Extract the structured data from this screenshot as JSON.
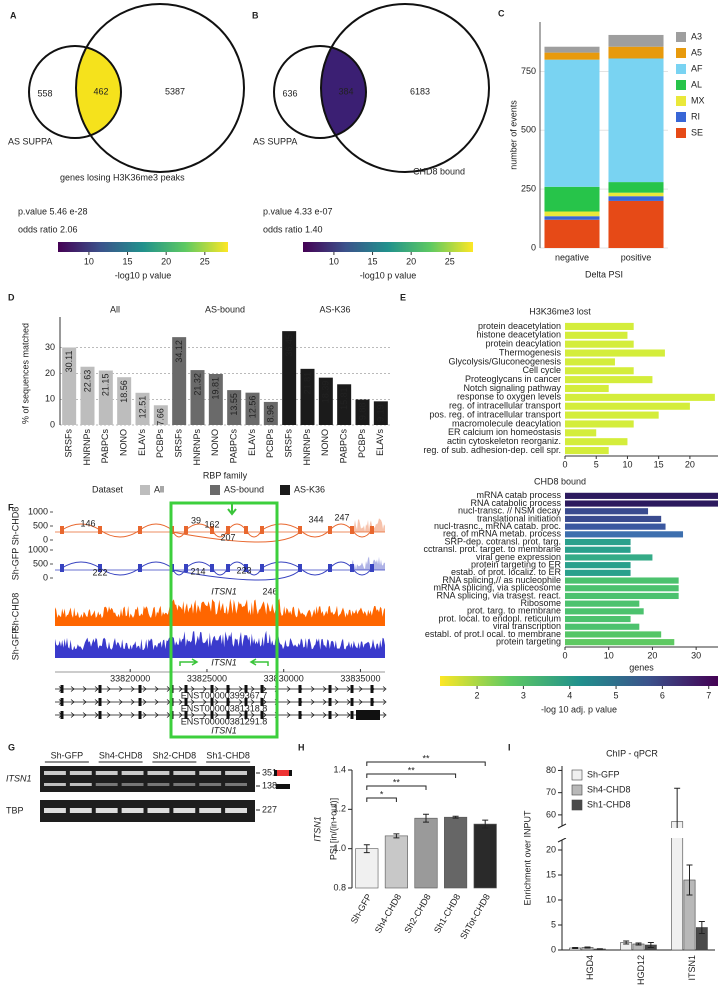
{
  "panel_labels": [
    "A",
    "B",
    "C",
    "D",
    "E",
    "F",
    "G",
    "H",
    "I"
  ],
  "venns": [
    {
      "left_count": 558,
      "overlap_count": 462,
      "right_count": 5387,
      "left_name": "AS SUPPA",
      "right_name": "genes losing H3K36me3 peaks",
      "pvalue": "p.value 5.46 e-28",
      "odds": "odds ratio 2.06",
      "overlap_color": "#f5e21c",
      "overlap_text_color": "#000000",
      "colorbar": {
        "label": "-log10 p value",
        "lim": [
          6,
          28
        ],
        "ticks": [
          10,
          15,
          20,
          25
        ]
      }
    },
    {
      "left_count": 636,
      "overlap_count": 384,
      "right_count": 6183,
      "left_name": "AS SUPPA",
      "right_name": "CHD8 bound",
      "pvalue": "p.value 4.33 e-07",
      "odds": "odds ratio 1.40",
      "overlap_color": "#3b1f73",
      "overlap_text_color": "#ffffff",
      "colorbar": {
        "label": "-log10 p value",
        "lim": [
          6,
          28
        ],
        "ticks": [
          10,
          15,
          20,
          25
        ]
      }
    }
  ],
  "chart_data": [
    {
      "type": "stacked_bar",
      "categories": [
        "negative",
        "positive"
      ],
      "series": [
        {
          "name": "A3",
          "color": "#9e9e9e",
          "values": [
            25,
            50
          ]
        },
        {
          "name": "A5",
          "color": "#e89a0c",
          "values": [
            30,
            50
          ]
        },
        {
          "name": "AF",
          "color": "#79d3f2",
          "values": [
            540,
            525
          ]
        },
        {
          "name": "AL",
          "color": "#27c44a",
          "values": [
            105,
            45
          ]
        },
        {
          "name": "MX",
          "color": "#eae83a",
          "values": [
            20,
            15
          ]
        },
        {
          "name": "RI",
          "color": "#3866d6",
          "values": [
            15,
            20
          ]
        },
        {
          "name": "SE",
          "color": "#e64a17",
          "values": [
            120,
            200
          ]
        }
      ],
      "ylim": [
        0,
        960
      ],
      "yticks": [
        0,
        250,
        500,
        750
      ],
      "xlabel": "Delta PSI",
      "ylabel": "number of events",
      "grid": true,
      "legend": "right"
    },
    {
      "type": "grouped_bar_panels",
      "ylabel": "% of sequences matched",
      "xlabel": "RBP family",
      "legend_title": "Dataset",
      "groups": [
        {
          "name": "All",
          "color": "#bdbdbd",
          "categories": [
            "SRSFs",
            "HNRNPs",
            "PABPCs",
            "NONO",
            "ELAVs",
            "PCBPs"
          ],
          "values": [
            30.11,
            22.63,
            21.15,
            18.56,
            12.51,
            7.66
          ]
        },
        {
          "name": "AS-bound",
          "color": "#6a6a6a",
          "categories": [
            "SRSFs",
            "HNRNPs",
            "NONO",
            "PABPCs",
            "ELAVs",
            "PCBPs"
          ],
          "values": [
            34.12,
            21.32,
            19.81,
            13.55,
            12.56,
            8.96
          ]
        },
        {
          "name": "AS-K36",
          "color": "#1b1b1b",
          "categories": [
            "SRSFs",
            "HNRNPs",
            "NONO",
            "PABPCs",
            "PCBPs",
            "ELAVs"
          ],
          "values": [
            36.45,
            21.81,
            18.39,
            15.81,
            9.88,
            9.19
          ]
        }
      ],
      "ylim": [
        0,
        40
      ],
      "yticks": [
        0,
        10,
        20,
        30
      ],
      "grid": true
    },
    {
      "type": "hbar",
      "title": "H3K36me3 lost",
      "categories": [
        "protein deacetylation",
        "histone deacetylation",
        "protein deacylation",
        "Thermogenesis",
        "Glycolysis/Gluconeogenesis",
        "Cell cycle",
        "Proteoglycans in cancer",
        "Notch signaling pathway",
        "response to oxygen levels",
        "reg. of intracellular transport",
        "pos. reg. of intracellular transport",
        "macromolecule deacylation",
        "ER calcium ion homeostasis",
        "actin cytoskeleton reorganiz.",
        "reg. of sub. adhesion-dep. cell spr."
      ],
      "values": [
        11,
        10,
        11,
        16,
        8,
        11,
        14,
        7,
        24,
        20,
        15,
        11,
        5,
        10,
        7
      ],
      "color": "#d4ed3b",
      "xlim": [
        0,
        24.5
      ],
      "xticks": [
        0,
        5,
        10,
        15,
        20
      ]
    },
    {
      "type": "hbar",
      "title": "CHD8 bound",
      "xlabel": "genes",
      "categories": [
        "mRNA catab process",
        "RNA catabolic process",
        "nucl-transc. // NSM decay",
        "translational initiation",
        "nucl-trasnc., mRNA catab. proc.",
        "reg. of mRNA metab. process",
        "SRP-dep. cotransl. prot. targ.",
        "cctransl. prot. target. to membrane",
        "viral gene expression",
        "protein targeting to ER",
        "estab. of prot. localiz. to ER",
        "RNA splicing,// as nucleophile",
        "mRNA splicing, via spliceosome",
        "RNA splicing, via trasest. react.",
        "Ribosome",
        "prot. targ. to membrane",
        "prot. local. to endopl. reticulum",
        "viral transcription",
        "establ. of prot.l ocal. to membrane",
        "protein targeting"
      ],
      "values": [
        35,
        35,
        19,
        22,
        23,
        27,
        15,
        15,
        20,
        15,
        15,
        26,
        26,
        26,
        17,
        18,
        15,
        17,
        22,
        25
      ],
      "colors": [
        "#2c1a5e",
        "#2c1a5e",
        "#3a4b8f",
        "#3a4b8f",
        "#3b58a0",
        "#3d6fae",
        "#2aa08c",
        "#2aa08c",
        "#35ab87",
        "#2aa08c",
        "#2aa08c",
        "#4cc26e",
        "#4cc26e",
        "#4cc26e",
        "#4cc26e",
        "#4cc26e",
        "#4cc26e",
        "#4cc26e",
        "#55c667",
        "#5ec962"
      ],
      "xlim": [
        0,
        35
      ],
      "xticks": [
        0,
        10,
        20,
        30
      ],
      "colorbar": {
        "label": "-log 10 adj. p value",
        "lim": [
          1.2,
          7.2
        ],
        "ticks": [
          2,
          3,
          4,
          5,
          6,
          7
        ]
      }
    },
    {
      "type": "bar_error",
      "ylabel": "PSI [in/(in+out)]",
      "ylabel2": "ITSN1",
      "categories": [
        "Sh-GFP",
        "Sh4-CHD8",
        "Sh2-CHD8",
        "Sh1-CHD8",
        "ShTot-CHD8"
      ],
      "values": [
        1.0,
        1.065,
        1.155,
        1.16,
        1.125
      ],
      "errors": [
        0.02,
        0.01,
        0.02,
        0.005,
        0.02
      ],
      "colors": [
        "#f0f0f0",
        "#c8c8c8",
        "#9a9a9a",
        "#666666",
        "#2a2a2a"
      ],
      "significance": [
        null,
        "*",
        "**",
        "**",
        "**"
      ],
      "ylim": [
        0.8,
        1.4
      ],
      "yticks": [
        0.8,
        {
          "value": 1,
          "label": "1.0"
        },
        1.2,
        1.4
      ]
    },
    {
      "type": "grouped_bar_error",
      "title": "ChIP - qPCR",
      "ylabel": "Enrichment over INPUT",
      "categories": [
        "HGD4",
        "HGD12",
        "ITSN1"
      ],
      "series": [
        {
          "name": "Sh-GFP",
          "color": "#f0f0f0",
          "values": [
            0.4,
            1.5,
            57
          ],
          "errors": [
            0.1,
            0.3,
            15
          ]
        },
        {
          "name": "Sh4-CHD8",
          "color": "#b8b8b8",
          "values": [
            0.5,
            1.2,
            14
          ],
          "errors": [
            0.1,
            0.2,
            3
          ]
        },
        {
          "name": "Sh1-CHD8",
          "color": "#4a4a4a",
          "values": [
            0.2,
            1.0,
            4.5
          ],
          "errors": [
            0.05,
            0.5,
            1.2
          ]
        }
      ],
      "ylim": [
        0,
        82
      ],
      "yticks": [
        0,
        5,
        10,
        15,
        20,
        60,
        70,
        80
      ],
      "axis_break": [
        22,
        55
      ],
      "legend": "upper left"
    }
  ],
  "browser": {
    "samples": [
      "Sh-CHD8",
      "Sh-GFP"
    ],
    "sashimi_ylim": [
      0,
      1000
    ],
    "sashimi_ticks": [
      0,
      500,
      1000
    ],
    "junction_labels": [
      146,
      39,
      162,
      207,
      344,
      247,
      222,
      214,
      223,
      246
    ],
    "gene": "ITSN1",
    "xlim": [
      33815100,
      33836600
    ],
    "coordinates": [
      33820000,
      33825000,
      33830000,
      33835000
    ],
    "transcripts": [
      "ENST00000399367.7",
      "ENST00000381318.8",
      "ENST00000381291.8"
    ],
    "colors": [
      "#e8672e",
      "#3742c0"
    ],
    "coverage_colors": [
      "#ff6600",
      "#3a3acc"
    ]
  },
  "gel": {
    "samples": [
      "Sh-GFP",
      "Sh4-CHD8",
      "Sh2-CHD8",
      "Sh1-CHD8"
    ],
    "genes": [
      "ITSN1",
      "TBP"
    ],
    "sizes": [
      351,
      138,
      227
    ]
  }
}
